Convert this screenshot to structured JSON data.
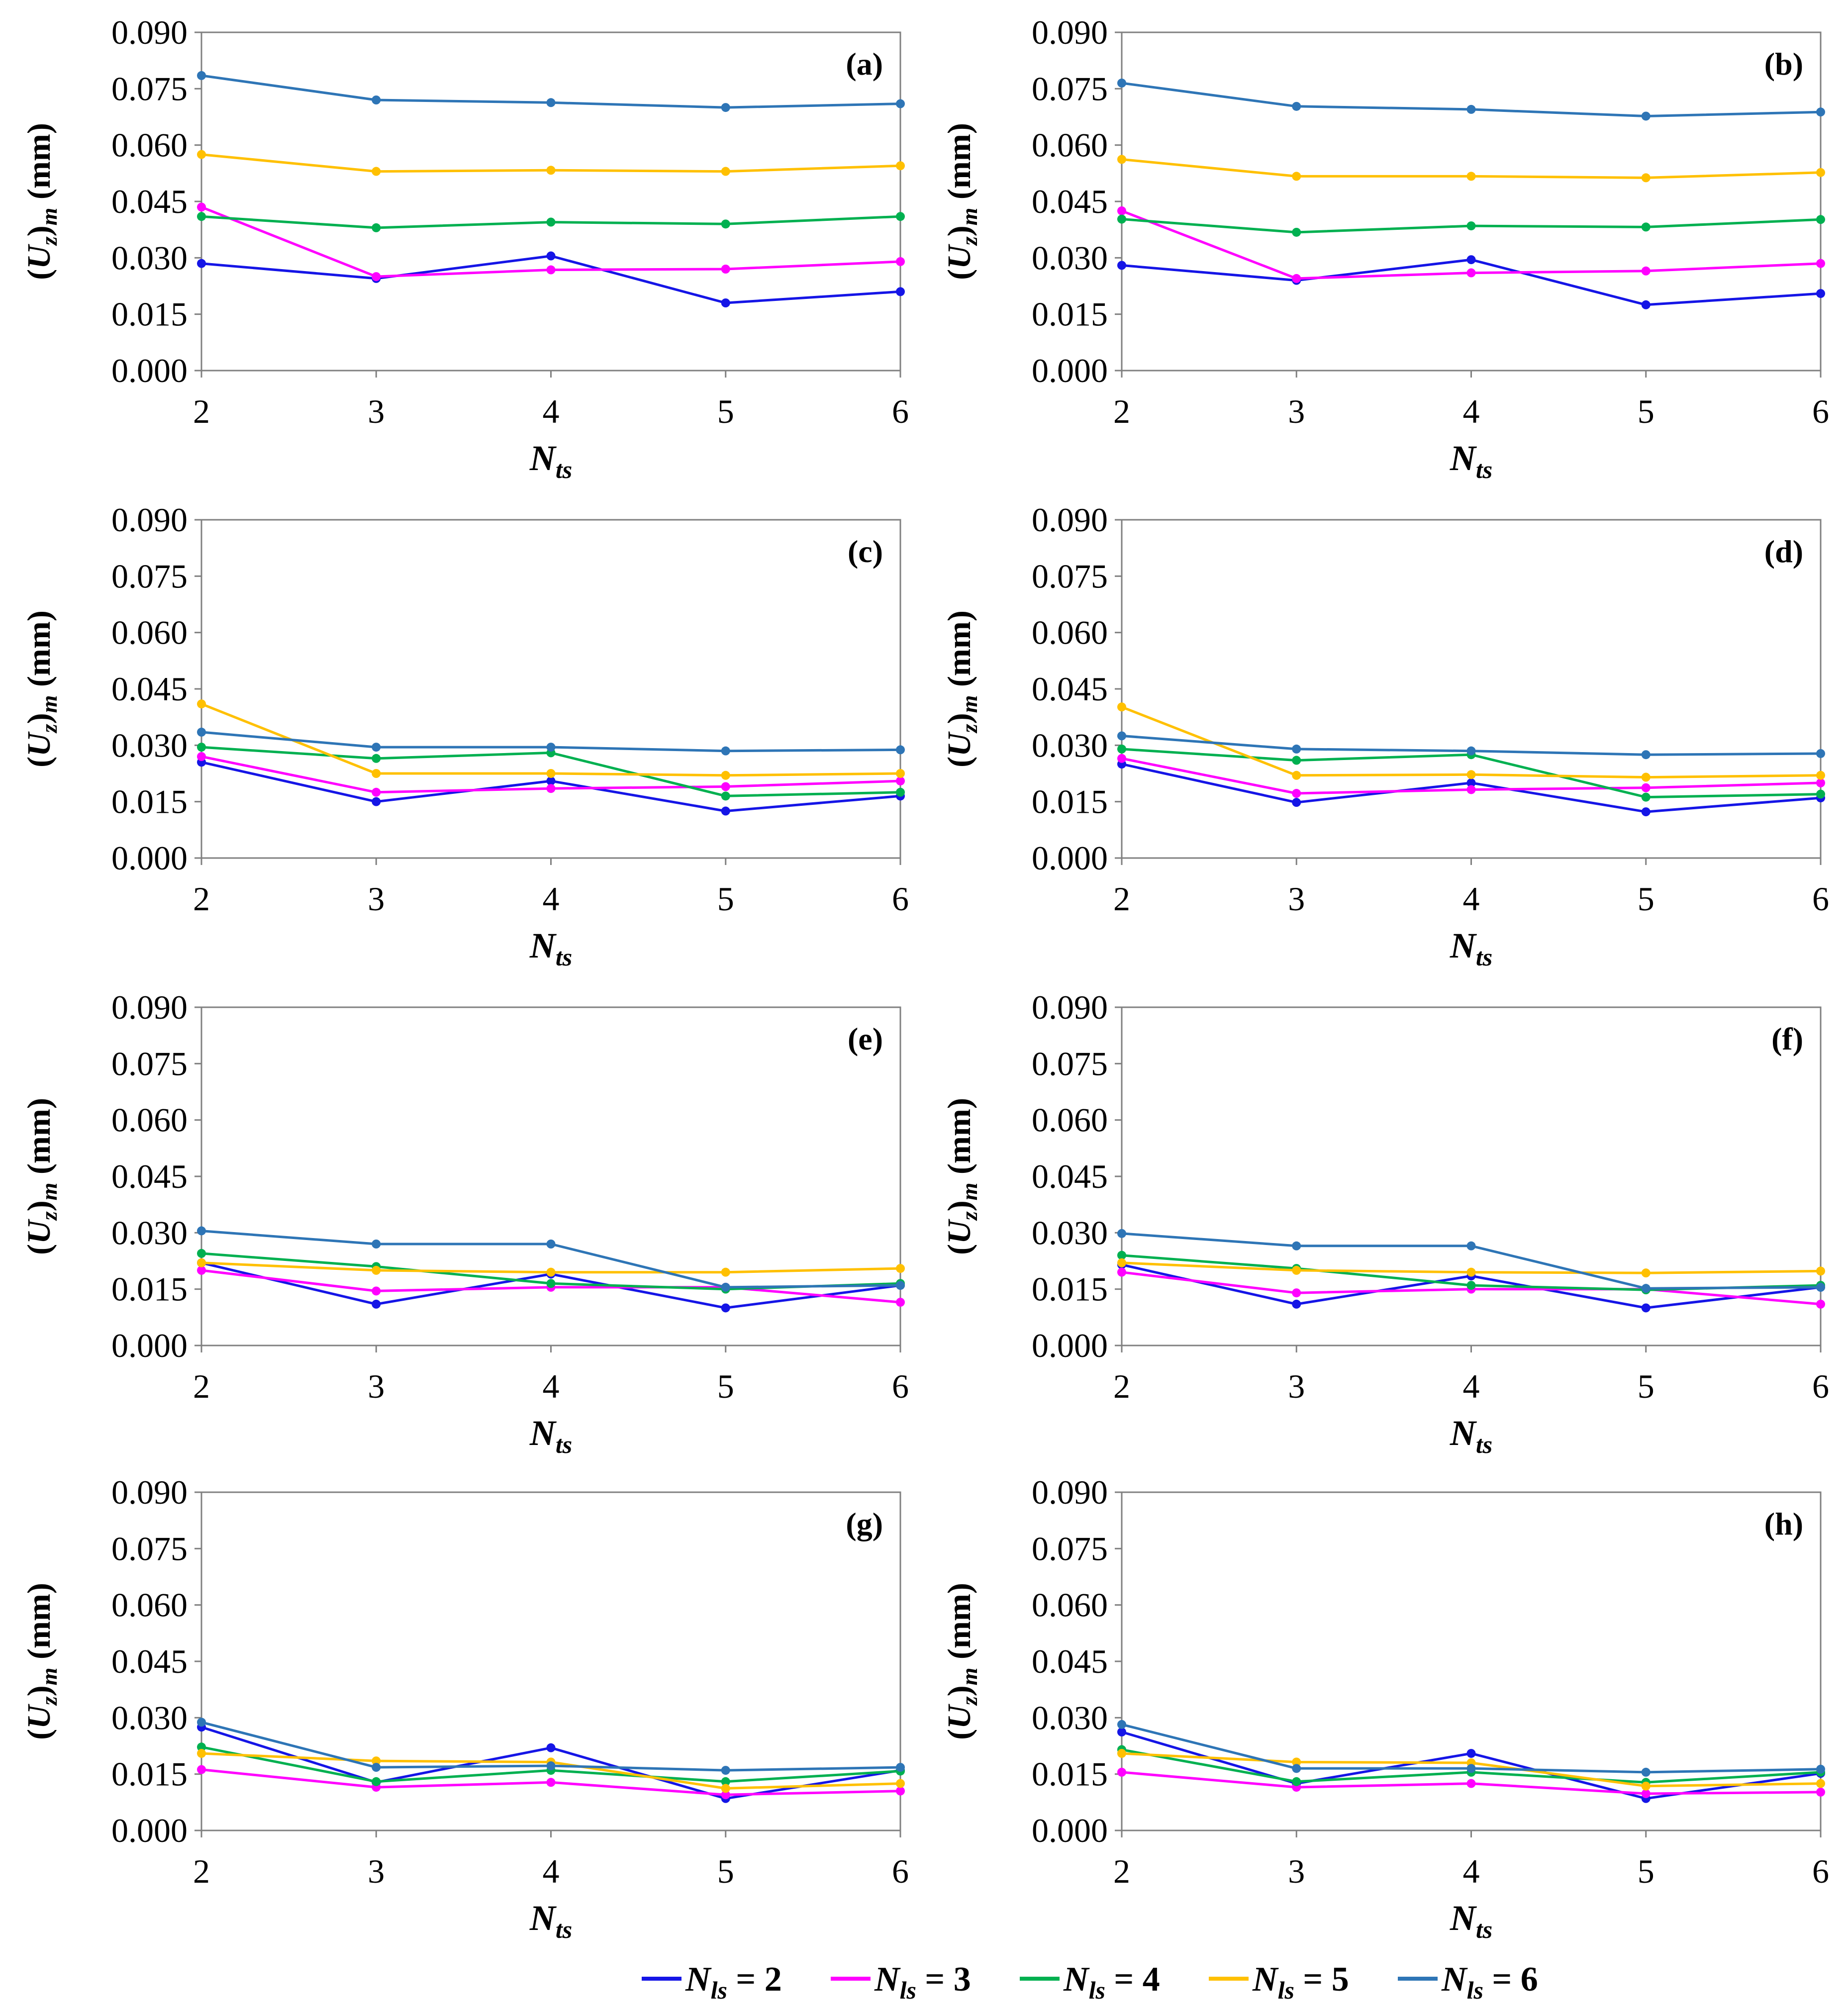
{
  "chart_data": {
    "type": "line",
    "shared": {
      "x": [
        2,
        3,
        4,
        5,
        6
      ],
      "xlabel_main": "N",
      "xlabel_sub": "ts",
      "ylabel_open": "(",
      "ylabel_main": "U",
      "ylabel_sub_inner": "z",
      "ylabel_close": ")",
      "ylabel_sub_outer": "m",
      "ylabel_unit": "(mm)",
      "ylim": [
        0,
        0.09
      ],
      "yticks": [
        "0.000",
        "0.015",
        "0.030",
        "0.045",
        "0.060",
        "0.075",
        "0.090"
      ],
      "xticks": [
        "2",
        "3",
        "4",
        "5",
        "6"
      ],
      "series_meta": [
        {
          "name": "N_ls = 2",
          "color": "#1515e6"
        },
        {
          "name": "N_ls = 3",
          "color": "#ff00ff"
        },
        {
          "name": "N_ls = 4",
          "color": "#00b050"
        },
        {
          "name": "N_ls = 5",
          "color": "#ffc000"
        },
        {
          "name": "N_ls = 6",
          "color": "#2e75b6"
        }
      ]
    },
    "legend": {
      "placement": "bottom-center",
      "items": [
        {
          "main": "N",
          "sub": "ls",
          "rest": " = 2"
        },
        {
          "main": "N",
          "sub": "ls",
          "rest": " = 3"
        },
        {
          "main": "N",
          "sub": "ls",
          "rest": " = 4"
        },
        {
          "main": "N",
          "sub": "ls",
          "rest": " = 5"
        },
        {
          "main": "N",
          "sub": "ls",
          "rest": " = 6"
        }
      ]
    },
    "panels": [
      {
        "label": "(a)",
        "series": [
          [
            0.0285,
            0.0245,
            0.0305,
            0.018,
            0.021
          ],
          [
            0.0435,
            0.025,
            0.0268,
            0.027,
            0.029
          ],
          [
            0.041,
            0.038,
            0.0395,
            0.039,
            0.041
          ],
          [
            0.0575,
            0.053,
            0.0533,
            0.053,
            0.0545
          ],
          [
            0.0785,
            0.072,
            0.0713,
            0.07,
            0.071
          ]
        ]
      },
      {
        "label": "(b)",
        "series": [
          [
            0.028,
            0.024,
            0.0295,
            0.0175,
            0.0205
          ],
          [
            0.0425,
            0.0245,
            0.026,
            0.0265,
            0.0285
          ],
          [
            0.0403,
            0.0368,
            0.0385,
            0.0382,
            0.0402
          ],
          [
            0.0562,
            0.0517,
            0.0517,
            0.0513,
            0.0527
          ],
          [
            0.0765,
            0.0703,
            0.0695,
            0.0677,
            0.0688
          ]
        ]
      },
      {
        "label": "(c)",
        "series": [
          [
            0.0255,
            0.015,
            0.0205,
            0.0125,
            0.0165
          ],
          [
            0.027,
            0.0175,
            0.0185,
            0.019,
            0.0205
          ],
          [
            0.0295,
            0.0265,
            0.028,
            0.0165,
            0.0175
          ],
          [
            0.041,
            0.0225,
            0.0225,
            0.022,
            0.0225
          ],
          [
            0.0335,
            0.0295,
            0.0295,
            0.0285,
            0.0288
          ]
        ]
      },
      {
        "label": "(d)",
        "series": [
          [
            0.025,
            0.0148,
            0.02,
            0.0123,
            0.016
          ],
          [
            0.0265,
            0.0172,
            0.0182,
            0.0187,
            0.02
          ],
          [
            0.029,
            0.026,
            0.0275,
            0.0162,
            0.017
          ],
          [
            0.0402,
            0.022,
            0.0222,
            0.0215,
            0.022
          ],
          [
            0.0325,
            0.029,
            0.0285,
            0.0275,
            0.0278
          ]
        ]
      },
      {
        "label": "(e)",
        "series": [
          [
            0.022,
            0.011,
            0.019,
            0.01,
            0.016
          ],
          [
            0.02,
            0.0145,
            0.0155,
            0.0155,
            0.0115
          ],
          [
            0.0245,
            0.021,
            0.0165,
            0.015,
            0.0165
          ],
          [
            0.022,
            0.02,
            0.0195,
            0.0195,
            0.0205
          ],
          [
            0.0305,
            0.027,
            0.027,
            0.0155,
            0.016
          ]
        ]
      },
      {
        "label": "(f)",
        "series": [
          [
            0.0215,
            0.011,
            0.0185,
            0.01,
            0.0155
          ],
          [
            0.0195,
            0.014,
            0.015,
            0.015,
            0.011
          ],
          [
            0.024,
            0.0205,
            0.016,
            0.0148,
            0.016
          ],
          [
            0.022,
            0.02,
            0.0195,
            0.0193,
            0.0198
          ],
          [
            0.0298,
            0.0265,
            0.0265,
            0.0152,
            0.0155
          ]
        ]
      },
      {
        "label": "(g)",
        "series": [
          [
            0.0275,
            0.0128,
            0.022,
            0.0085,
            0.016
          ],
          [
            0.0162,
            0.0115,
            0.0128,
            0.0095,
            0.0105
          ],
          [
            0.0222,
            0.013,
            0.016,
            0.013,
            0.0158
          ],
          [
            0.0205,
            0.0185,
            0.0182,
            0.0112,
            0.0125
          ],
          [
            0.0288,
            0.0168,
            0.0172,
            0.016,
            0.0168
          ]
        ]
      },
      {
        "label": "(h)",
        "series": [
          [
            0.0262,
            0.0125,
            0.0205,
            0.0085,
            0.0152
          ],
          [
            0.0155,
            0.0115,
            0.0125,
            0.0098,
            0.0102
          ],
          [
            0.0215,
            0.013,
            0.0155,
            0.0128,
            0.0155
          ],
          [
            0.0205,
            0.0182,
            0.018,
            0.0118,
            0.0125
          ],
          [
            0.0282,
            0.0165,
            0.0165,
            0.0155,
            0.0163
          ]
        ]
      }
    ]
  }
}
